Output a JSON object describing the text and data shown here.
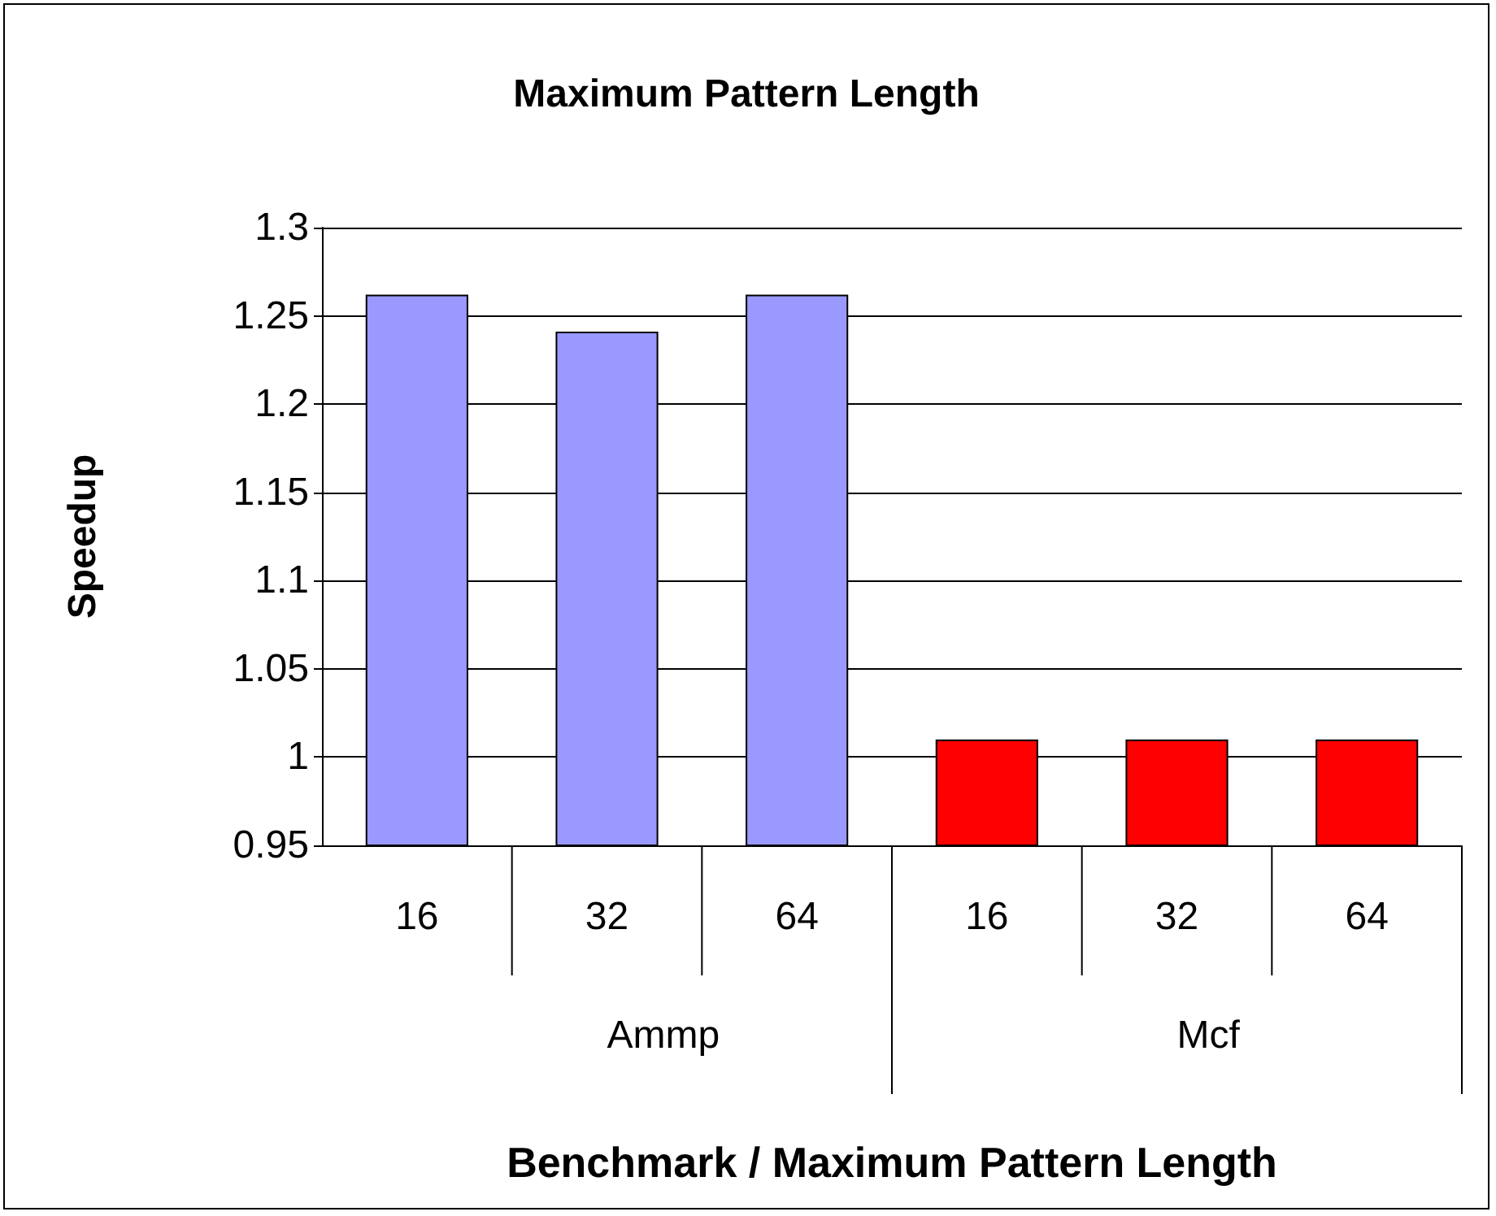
{
  "chart_data": {
    "type": "bar",
    "title": "Maximum Pattern Length",
    "xlabel": "Benchmark / Maximum Pattern Length",
    "ylabel": "Speedup",
    "categories": [
      "16",
      "32",
      "64",
      "16",
      "32",
      "64"
    ],
    "values": [
      1.262,
      1.241,
      1.262,
      1.01,
      1.01,
      1.01
    ],
    "colors": [
      "#9999ff",
      "#9999ff",
      "#9999ff",
      "#ff0000",
      "#ff0000",
      "#ff0000"
    ],
    "annotations": [
      "Ammp",
      "Mcf"
    ],
    "ylim": [
      0.95,
      1.3
    ],
    "yticks": [
      0.95,
      1,
      1.05,
      1.1,
      1.15,
      1.2,
      1.25,
      1.3
    ],
    "grid": "y"
  }
}
